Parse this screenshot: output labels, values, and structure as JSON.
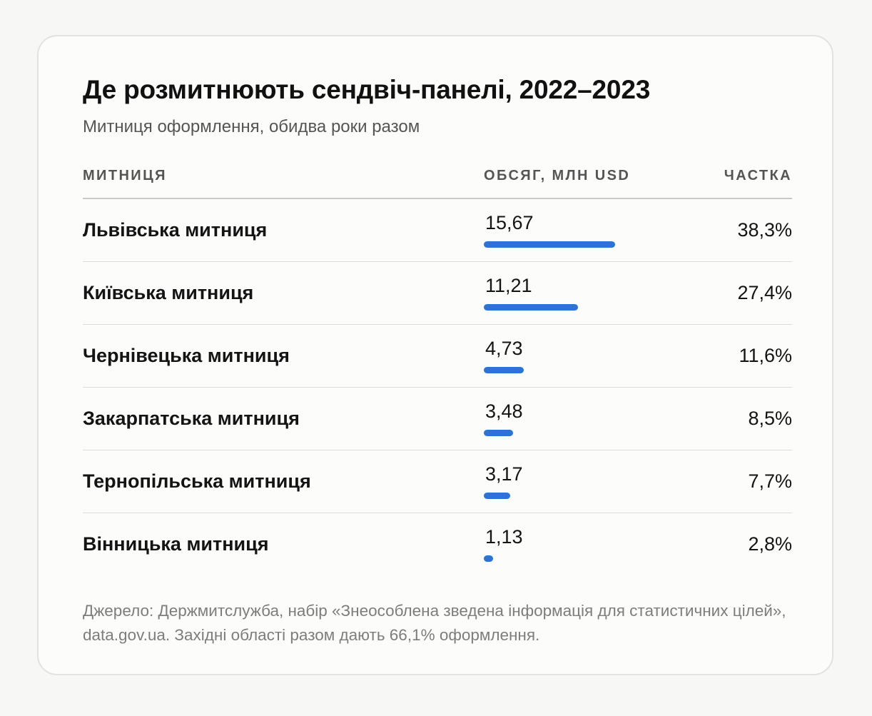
{
  "title": "Де розмитнюють сендвіч-панелі, 2022–2023",
  "subtitle": "Митниця оформлення, обидва роки разом",
  "columns": {
    "name": "МИТНИЦЯ",
    "value": "ОБСЯГ, МЛН USD",
    "share": "ЧАСТКА"
  },
  "colors": {
    "bar": "#2b73d4",
    "card_background": "#fcfcfb",
    "page_background": "#f7f7f6"
  },
  "chart_data": {
    "type": "table",
    "title": "Де розмитнюють сендвіч-панелі, 2022–2023",
    "subtitle": "Митниця оформлення, обидва роки разом",
    "headers": [
      "МИТНИЦЯ",
      "ОБСЯГ, МЛН USD",
      "ЧАСТКА"
    ],
    "categories": [
      "Львівська митниця",
      "Київська митниця",
      "Чернівецька митниця",
      "Закарпатська митниця",
      "Тернопільська митниця",
      "Вінницька митниця"
    ],
    "values": [
      15.67,
      11.21,
      4.73,
      3.48,
      3.17,
      1.13
    ],
    "rows": [
      {
        "name": "Львівська митниця",
        "value": 15.67,
        "value_label": "15,67",
        "share_label": "38,3%"
      },
      {
        "name": "Київська митниця",
        "value": 11.21,
        "value_label": "11,21",
        "share_label": "27,4%"
      },
      {
        "name": "Чернівецька митниця",
        "value": 4.73,
        "value_label": "4,73",
        "share_label": "11,6%"
      },
      {
        "name": "Закарпатська митниця",
        "value": 3.48,
        "value_label": "3,48",
        "share_label": "8,5%"
      },
      {
        "name": "Тернопільська митниця",
        "value": 3.17,
        "value_label": "3,17",
        "share_label": "7,7%"
      },
      {
        "name": "Вінницька митниця",
        "value": 1.13,
        "value_label": "1,13",
        "share_label": "2,8%"
      }
    ]
  },
  "note": "Джерело: Держмитслужба, набір «Знеособлена зведена інформація для статистичних цілей», data.gov.ua. Західні області разом дають 66,1% оформлення."
}
